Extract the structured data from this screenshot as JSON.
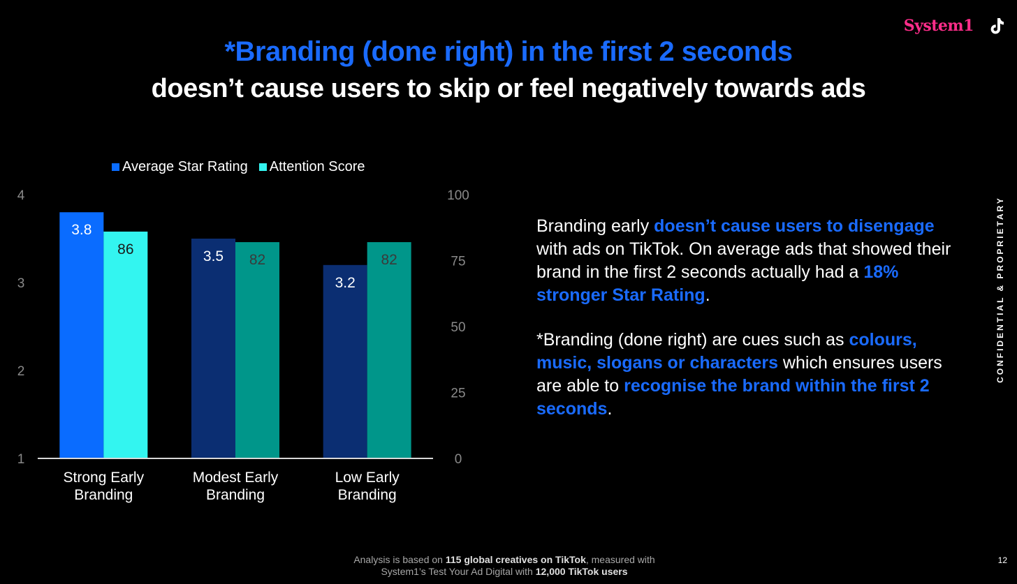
{
  "brand": {
    "logo_text": "System1",
    "logo_color": "#ff2d8a",
    "platform_icon": "tiktok-icon"
  },
  "header": {
    "title_line1": "*Branding (done right) in the first 2 seconds",
    "title_line2": "doesn’t cause users to skip or feel negatively towards ads"
  },
  "chart_data": {
    "type": "bar",
    "categories": [
      "Strong Early\nBranding",
      "Modest Early\nBranding",
      "Low Early\nBranding"
    ],
    "series": [
      {
        "name": "Average Star Rating",
        "axis": "left",
        "values": [
          3.8,
          3.5,
          3.2
        ],
        "labels": [
          "3.8",
          "3.5",
          "3.2"
        ],
        "colors": [
          "#0a6cff",
          "#0b2e72",
          "#0b2e72"
        ],
        "legend_color": "#0a6cff"
      },
      {
        "name": "Attention Score",
        "axis": "right",
        "values": [
          86,
          82,
          82
        ],
        "labels": [
          "86",
          "82",
          "82"
        ],
        "colors": [
          "#33f5f0",
          "#00968a",
          "#00968a"
        ],
        "legend_color": "#33f5f0"
      }
    ],
    "y_left": {
      "min": 1,
      "max": 4,
      "ticks": [
        "1",
        "2",
        "3",
        "4"
      ]
    },
    "y_right": {
      "min": 0,
      "max": 100,
      "ticks": [
        "0",
        "25",
        "50",
        "75",
        "100"
      ]
    },
    "legend": "top",
    "grid": false
  },
  "side_text": {
    "p1": [
      {
        "t": "Branding early ",
        "hl": false
      },
      {
        "t": "doesn’t cause users to disengage",
        "hl": true
      },
      {
        "t": " with ads on TikTok. On average ads that showed their brand in the first 2 seconds actually had a ",
        "hl": false
      },
      {
        "t": "18% stronger Star Rating",
        "hl": true
      },
      {
        "t": ".",
        "hl": false
      }
    ],
    "p2": [
      {
        "t": "*Branding (done right) are cues such as ",
        "hl": false
      },
      {
        "t": "colours, music, slogans or characters",
        "hl": true
      },
      {
        "t": " which ensures users are able to ",
        "hl": false
      },
      {
        "t": "recognise the brand within the first 2 seconds",
        "hl": true
      },
      {
        "t": ".",
        "hl": false
      }
    ]
  },
  "confidential": "CONFIDENTIAL & PROPRIETARY",
  "footer": {
    "line1": [
      {
        "t": "Analysis is based on ",
        "b": false
      },
      {
        "t": "115 global creatives on TikTok",
        "b": true
      },
      {
        "t": ", measured with",
        "b": false
      }
    ],
    "line2": [
      {
        "t": "System1’s Test Your Ad Digital with ",
        "b": false
      },
      {
        "t": "12,000 TikTok users",
        "b": true
      }
    ]
  },
  "page_number": "12"
}
